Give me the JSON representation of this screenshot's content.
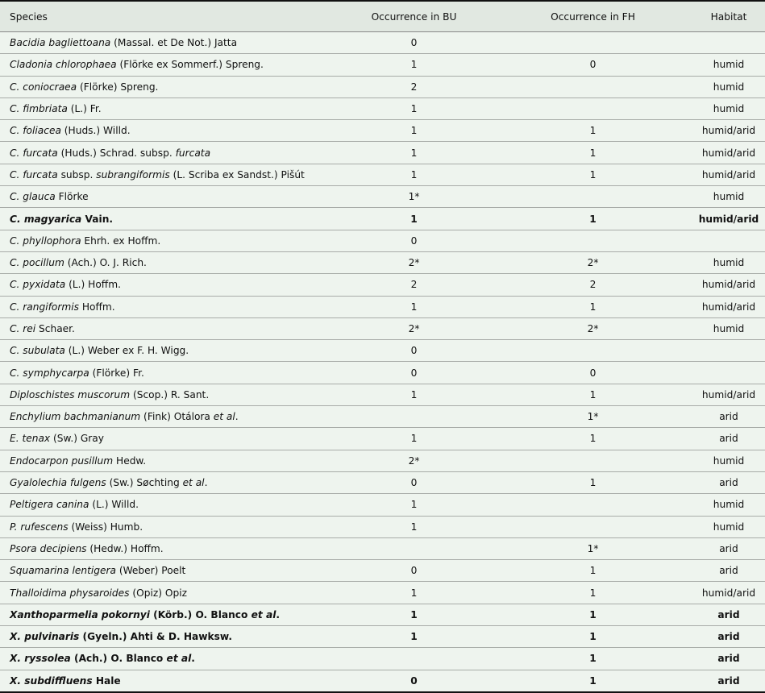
{
  "headers": {
    "species": "Species",
    "bu": "Occurrence in BU",
    "fh": "Occurrence in FH",
    "habitat": "Habitat"
  },
  "rows": [
    {
      "species": [
        [
          "Bacidia bagliettoana",
          true
        ],
        [
          " (Massal. et De Not.) Jatta",
          false
        ]
      ],
      "bu": "0",
      "fh": "",
      "habitat": "",
      "bold": false
    },
    {
      "species": [
        [
          "Cladonia chlorophaea",
          true
        ],
        [
          " (Flörke ex Sommerf.) Spreng.",
          false
        ]
      ],
      "bu": "1",
      "fh": "0",
      "habitat": "humid",
      "bold": false
    },
    {
      "species": [
        [
          "C. coniocraea",
          true
        ],
        [
          " (Flörke) Spreng.",
          false
        ]
      ],
      "bu": "2",
      "fh": "",
      "habitat": "humid",
      "bold": false
    },
    {
      "species": [
        [
          "C. fimbriata",
          true
        ],
        [
          " (L.) Fr.",
          false
        ]
      ],
      "bu": "1",
      "fh": "",
      "habitat": "humid",
      "bold": false
    },
    {
      "species": [
        [
          "C. foliacea",
          true
        ],
        [
          " (Huds.) Willd.",
          false
        ]
      ],
      "bu": "1",
      "fh": "1",
      "habitat": "humid/arid",
      "bold": false
    },
    {
      "species": [
        [
          "C. furcata",
          true
        ],
        [
          " (Huds.) Schrad. subsp. ",
          false
        ],
        [
          "furcata",
          true
        ]
      ],
      "bu": "1",
      "fh": "1",
      "habitat": "humid/arid",
      "bold": false
    },
    {
      "species": [
        [
          "C. furcata",
          true
        ],
        [
          " subsp. ",
          false
        ],
        [
          "subrangiformis",
          true
        ],
        [
          " (L. Scriba ex Sandst.) Pišút",
          false
        ]
      ],
      "bu": "1",
      "fh": "1",
      "habitat": "humid/arid",
      "bold": false
    },
    {
      "species": [
        [
          "C. glauca",
          true
        ],
        [
          " Flörke",
          false
        ]
      ],
      "bu": "1*",
      "fh": "",
      "habitat": "humid",
      "bold": false
    },
    {
      "species": [
        [
          "C. magyarica",
          true
        ],
        [
          " Vain.",
          false
        ]
      ],
      "bu": "1",
      "fh": "1",
      "habitat": "humid/arid",
      "bold": true
    },
    {
      "species": [
        [
          "C. phyllophora",
          true
        ],
        [
          " Ehrh. ex Hoffm.",
          false
        ]
      ],
      "bu": "0",
      "fh": "",
      "habitat": "",
      "bold": false
    },
    {
      "species": [
        [
          "C. pocillum",
          true
        ],
        [
          " (Ach.) O. J. Rich.",
          false
        ]
      ],
      "bu": "2*",
      "fh": "2*",
      "habitat": "humid",
      "bold": false
    },
    {
      "species": [
        [
          "C. pyxidata",
          true
        ],
        [
          " (L.) Hoffm.",
          false
        ]
      ],
      "bu": "2",
      "fh": "2",
      "habitat": "humid/arid",
      "bold": false
    },
    {
      "species": [
        [
          "C. rangiformis",
          true
        ],
        [
          " Hoffm.",
          false
        ]
      ],
      "bu": "1",
      "fh": "1",
      "habitat": "humid/arid",
      "bold": false
    },
    {
      "species": [
        [
          "C. rei",
          true
        ],
        [
          " Schaer.",
          false
        ]
      ],
      "bu": "2*",
      "fh": "2*",
      "habitat": "humid",
      "bold": false
    },
    {
      "species": [
        [
          "C. subulata",
          true
        ],
        [
          " (L.) Weber ex F. H. Wigg.",
          false
        ]
      ],
      "bu": "0",
      "fh": "",
      "habitat": "",
      "bold": false
    },
    {
      "species": [
        [
          "C. symphycarpa",
          true
        ],
        [
          " (Flörke) Fr.",
          false
        ]
      ],
      "bu": "0",
      "fh": "0",
      "habitat": "",
      "bold": false
    },
    {
      "species": [
        [
          "Diploschistes muscorum",
          true
        ],
        [
          " (Scop.) R. Sant.",
          false
        ]
      ],
      "bu": "1",
      "fh": "1",
      "habitat": "humid/arid",
      "bold": false
    },
    {
      "species": [
        [
          "Enchylium bachmanianum",
          true
        ],
        [
          " (Fink) Otálora ",
          false
        ],
        [
          "et al",
          true
        ],
        [
          ".",
          false
        ]
      ],
      "bu": "",
      "fh": "1*",
      "habitat": "arid",
      "bold": false
    },
    {
      "species": [
        [
          "E. tenax",
          true
        ],
        [
          " (Sw.) Gray",
          false
        ]
      ],
      "bu": "1",
      "fh": "1",
      "habitat": "arid",
      "bold": false
    },
    {
      "species": [
        [
          "Endocarpon pusillum",
          true
        ],
        [
          " Hedw.",
          false
        ]
      ],
      "bu": "2*",
      "fh": "",
      "habitat": "humid",
      "bold": false
    },
    {
      "species": [
        [
          "Gyalolechia fulgens",
          true
        ],
        [
          " (Sw.) Søchting ",
          false
        ],
        [
          "et al",
          true
        ],
        [
          ".",
          false
        ]
      ],
      "bu": "0",
      "fh": "1",
      "habitat": "arid",
      "bold": false
    },
    {
      "species": [
        [
          "Peltigera canina",
          true
        ],
        [
          " (L.) Willd.",
          false
        ]
      ],
      "bu": "1",
      "fh": "",
      "habitat": "humid",
      "bold": false
    },
    {
      "species": [
        [
          "P. rufescens",
          true
        ],
        [
          " (Weiss) Humb.",
          false
        ]
      ],
      "bu": "1",
      "fh": "",
      "habitat": "humid",
      "bold": false
    },
    {
      "species": [
        [
          "Psora decipiens",
          true
        ],
        [
          " (Hedw.) Hoffm.",
          false
        ]
      ],
      "bu": "",
      "fh": "1*",
      "habitat": "arid",
      "bold": false
    },
    {
      "species": [
        [
          "Squamarina lentigera",
          true
        ],
        [
          " (Weber) Poelt",
          false
        ]
      ],
      "bu": "0",
      "fh": "1",
      "habitat": "arid",
      "bold": false
    },
    {
      "species": [
        [
          "Thalloidima physaroides",
          true
        ],
        [
          " (Opiz) Opiz",
          false
        ]
      ],
      "bu": "1",
      "fh": "1",
      "habitat": "humid/arid",
      "bold": false
    },
    {
      "species": [
        [
          "Xanthoparmelia pokornyi",
          true
        ],
        [
          " (Körb.) O. Blanco ",
          false
        ],
        [
          "et al",
          true
        ],
        [
          ".",
          false
        ]
      ],
      "bu": "1",
      "fh": "1",
      "habitat": "arid",
      "bold": true
    },
    {
      "species": [
        [
          "X. pulvinaris",
          true
        ],
        [
          " (Gyeln.) Ahti & D. Hawksw.",
          false
        ]
      ],
      "bu": "1",
      "fh": "1",
      "habitat": "arid",
      "bold": true
    },
    {
      "species": [
        [
          "X. ryssolea",
          true
        ],
        [
          " (Ach.) O. Blanco ",
          false
        ],
        [
          "et al",
          true
        ],
        [
          ".",
          false
        ]
      ],
      "bu": "",
      "fh": "1",
      "habitat": "arid",
      "bold": true
    },
    {
      "species": [
        [
          "X. subdiffluens",
          true
        ],
        [
          " Hale",
          false
        ]
      ],
      "bu": "0",
      "fh": "1",
      "habitat": "arid",
      "bold": true
    }
  ]
}
